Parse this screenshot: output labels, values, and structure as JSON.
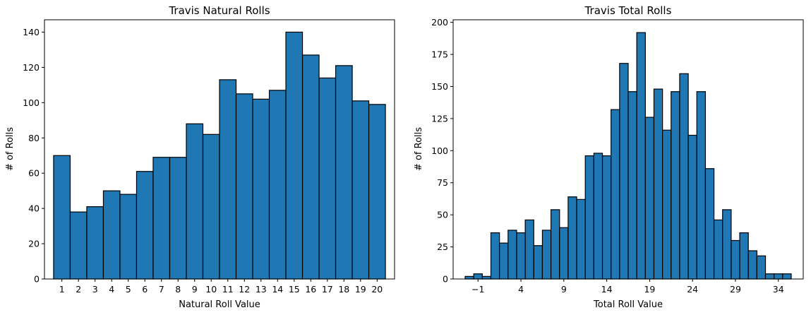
{
  "chart_data": [
    {
      "type": "bar",
      "title": "Travis Natural Rolls",
      "xlabel": "Natural Roll Value",
      "ylabel": "# of Rolls",
      "categories": [
        1,
        2,
        3,
        4,
        5,
        6,
        7,
        8,
        9,
        10,
        11,
        12,
        13,
        14,
        15,
        16,
        17,
        18,
        19,
        20
      ],
      "values": [
        70,
        38,
        41,
        50,
        48,
        61,
        69,
        69,
        88,
        82,
        113,
        105,
        102,
        107,
        140,
        127,
        114,
        121,
        101,
        99
      ],
      "xticks": [
        1,
        2,
        3,
        4,
        5,
        6,
        7,
        8,
        9,
        10,
        11,
        12,
        13,
        14,
        15,
        16,
        17,
        18,
        19,
        20
      ],
      "xlim": [
        -0.05,
        21.05
      ],
      "ylim": [
        0,
        147
      ],
      "yticks": [
        0,
        20,
        40,
        60,
        80,
        100,
        120,
        140
      ],
      "grid": false,
      "color": "#1f77b4"
    },
    {
      "type": "bar",
      "title": "Travis Total Rolls",
      "xlabel": "Total Roll Value",
      "ylabel": "# of Rolls",
      "categories": [
        -2,
        -1,
        0,
        1,
        2,
        3,
        4,
        5,
        6,
        7,
        8,
        9,
        10,
        11,
        12,
        13,
        14,
        15,
        16,
        17,
        18,
        19,
        20,
        21,
        22,
        23,
        24,
        25,
        26,
        27,
        28,
        29,
        30,
        31,
        32,
        33,
        34,
        35,
        36
      ],
      "values": [
        2,
        4,
        2,
        36,
        28,
        38,
        36,
        46,
        26,
        38,
        54,
        40,
        64,
        62,
        96,
        98,
        96,
        132,
        168,
        146,
        192,
        126,
        148,
        116,
        146,
        160,
        112,
        146,
        86,
        46,
        54,
        30,
        36,
        22,
        18,
        4,
        4,
        4,
        0
      ],
      "xticks": [
        -1,
        4,
        9,
        14,
        19,
        24,
        29,
        34
      ],
      "xtick_labels": [
        "−1",
        "4",
        "9",
        "14",
        "19",
        "24",
        "29",
        "34"
      ],
      "xlim": [
        -3.9,
        36.9
      ],
      "ylim": [
        0,
        202
      ],
      "yticks": [
        0,
        25,
        50,
        75,
        100,
        125,
        150,
        175,
        200
      ],
      "grid": false,
      "color": "#1f77b4"
    }
  ]
}
